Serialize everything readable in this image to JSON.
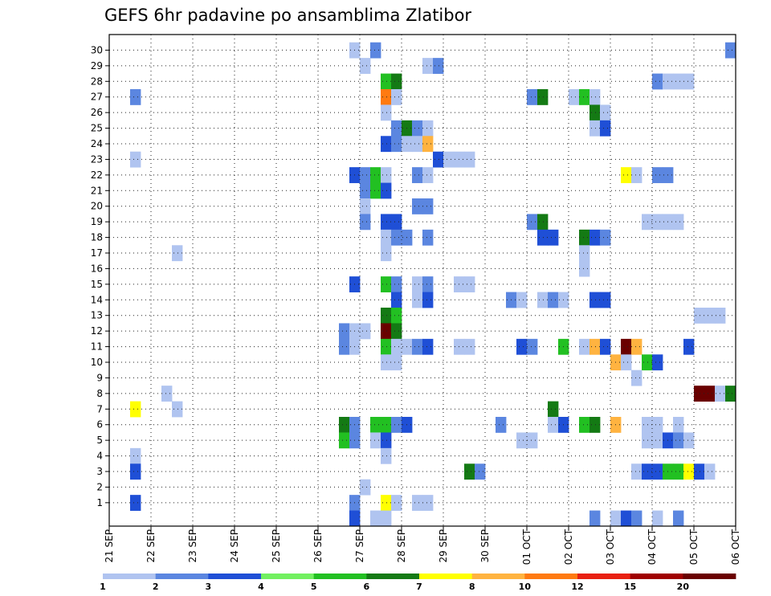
{
  "chart_data": {
    "type": "heatmap",
    "title": "GEFS 6hr padavine po ansamblima Zlatibor",
    "xlabel": "",
    "ylabel": "",
    "grid": true,
    "x_start": "21 SEP",
    "steps_per_day": 4,
    "total_steps": 60,
    "x_tick_labels": [
      "21 SEP",
      "22 SEP",
      "23 SEP",
      "24 SEP",
      "25 SEP",
      "26 SEP",
      "27 SEP",
      "28 SEP",
      "29 SEP",
      "30 SEP",
      "01 OCT",
      "02 OCT",
      "03 OCT",
      "04 OCT",
      "05 OCT",
      "06 OCT"
    ],
    "y_tick_labels": [
      "1",
      "2",
      "3",
      "4",
      "5",
      "6",
      "7",
      "8",
      "9",
      "10",
      "11",
      "12",
      "13",
      "14",
      "15",
      "16",
      "17",
      "18",
      "19",
      "20",
      "21",
      "22",
      "23",
      "24",
      "25",
      "26",
      "27",
      "28",
      "29",
      "30"
    ],
    "ylim": [
      0,
      30
    ],
    "legend": {
      "placement": "bottom",
      "labels": [
        "1",
        "2",
        "3",
        "4",
        "5",
        "6",
        "7",
        "8",
        "10",
        "12",
        "15",
        "20"
      ],
      "colors": [
        "#b0c4f0",
        "#5b86e0",
        "#1f4fd6",
        "#72f060",
        "#22c022",
        "#147a14",
        "#ffff00",
        "#ffb340",
        "#ff7a10",
        "#e82010",
        "#a00000",
        "#6a0000"
      ]
    },
    "cells": [
      [
        23,
        30,
        1
      ],
      [
        25,
        30,
        2
      ],
      [
        59,
        30,
        2
      ],
      [
        24,
        29,
        1
      ],
      [
        30,
        29,
        1
      ],
      [
        31,
        29,
        2
      ],
      [
        26,
        28,
        5
      ],
      [
        27,
        28,
        6
      ],
      [
        52,
        28,
        2
      ],
      [
        53,
        28,
        1
      ],
      [
        54,
        28,
        1
      ],
      [
        55,
        28,
        1
      ],
      [
        2,
        27,
        2
      ],
      [
        26,
        27,
        10
      ],
      [
        27,
        27,
        1
      ],
      [
        40,
        27,
        2
      ],
      [
        41,
        27,
        6
      ],
      [
        44,
        27,
        1
      ],
      [
        45,
        27,
        5
      ],
      [
        46,
        27,
        1
      ],
      [
        26,
        26,
        1
      ],
      [
        46,
        26,
        6
      ],
      [
        47,
        26,
        1
      ],
      [
        27,
        25,
        2
      ],
      [
        28,
        25,
        6
      ],
      [
        29,
        25,
        2
      ],
      [
        30,
        25,
        1
      ],
      [
        46,
        25,
        1
      ],
      [
        47,
        25,
        3
      ],
      [
        26,
        24,
        3
      ],
      [
        27,
        24,
        2
      ],
      [
        28,
        24,
        1
      ],
      [
        29,
        24,
        1
      ],
      [
        30,
        24,
        8
      ],
      [
        2,
        23,
        1
      ],
      [
        31,
        23,
        3
      ],
      [
        32,
        23,
        1
      ],
      [
        33,
        23,
        1
      ],
      [
        34,
        23,
        1
      ],
      [
        23,
        22,
        3
      ],
      [
        24,
        22,
        2
      ],
      [
        25,
        22,
        5
      ],
      [
        26,
        22,
        1
      ],
      [
        29,
        22,
        2
      ],
      [
        30,
        22,
        1
      ],
      [
        49,
        22,
        7
      ],
      [
        50,
        22,
        1
      ],
      [
        52,
        22,
        2
      ],
      [
        53,
        22,
        2
      ],
      [
        24,
        21,
        2
      ],
      [
        25,
        21,
        5
      ],
      [
        26,
        21,
        3
      ],
      [
        24,
        20,
        1
      ],
      [
        29,
        20,
        2
      ],
      [
        30,
        20,
        2
      ],
      [
        24,
        19,
        2
      ],
      [
        26,
        19,
        3
      ],
      [
        27,
        19,
        3
      ],
      [
        40,
        19,
        2
      ],
      [
        41,
        19,
        6
      ],
      [
        51,
        19,
        1
      ],
      [
        52,
        19,
        1
      ],
      [
        53,
        19,
        1
      ],
      [
        54,
        19,
        1
      ],
      [
        26,
        18,
        1
      ],
      [
        27,
        18,
        2
      ],
      [
        28,
        18,
        2
      ],
      [
        30,
        18,
        2
      ],
      [
        41,
        18,
        3
      ],
      [
        42,
        18,
        3
      ],
      [
        45,
        18,
        6
      ],
      [
        46,
        18,
        3
      ],
      [
        47,
        18,
        2
      ],
      [
        26,
        17,
        1
      ],
      [
        6,
        17,
        1
      ],
      [
        45,
        17,
        1
      ],
      [
        45,
        16,
        1
      ],
      [
        23,
        15,
        3
      ],
      [
        26,
        15,
        5
      ],
      [
        27,
        15,
        2
      ],
      [
        29,
        15,
        1
      ],
      [
        30,
        15,
        2
      ],
      [
        33,
        15,
        1
      ],
      [
        34,
        15,
        1
      ],
      [
        27,
        14,
        3
      ],
      [
        29,
        14,
        1
      ],
      [
        30,
        14,
        3
      ],
      [
        38,
        14,
        2
      ],
      [
        39,
        14,
        1
      ],
      [
        41,
        14,
        1
      ],
      [
        42,
        14,
        2
      ],
      [
        43,
        14,
        1
      ],
      [
        46,
        14,
        3
      ],
      [
        47,
        14,
        3
      ],
      [
        26,
        13,
        6
      ],
      [
        27,
        13,
        5
      ],
      [
        56,
        13,
        1
      ],
      [
        57,
        13,
        1
      ],
      [
        58,
        13,
        1
      ],
      [
        22,
        12,
        2
      ],
      [
        23,
        12,
        1
      ],
      [
        24,
        12,
        1
      ],
      [
        26,
        12,
        20
      ],
      [
        27,
        12,
        6
      ],
      [
        22,
        11,
        2
      ],
      [
        23,
        11,
        1
      ],
      [
        26,
        11,
        5
      ],
      [
        27,
        11,
        1
      ],
      [
        28,
        11,
        1
      ],
      [
        29,
        11,
        2
      ],
      [
        30,
        11,
        3
      ],
      [
        33,
        11,
        1
      ],
      [
        34,
        11,
        1
      ],
      [
        39,
        11,
        3
      ],
      [
        40,
        11,
        2
      ],
      [
        43,
        11,
        5
      ],
      [
        45,
        11,
        1
      ],
      [
        46,
        11,
        8
      ],
      [
        47,
        11,
        3
      ],
      [
        49,
        11,
        20
      ],
      [
        50,
        11,
        8
      ],
      [
        55,
        11,
        3
      ],
      [
        26,
        10,
        1
      ],
      [
        27,
        10,
        1
      ],
      [
        48,
        10,
        8
      ],
      [
        49,
        10,
        1
      ],
      [
        51,
        10,
        5
      ],
      [
        52,
        10,
        3
      ],
      [
        50,
        9,
        1
      ],
      [
        5,
        8,
        1
      ],
      [
        56,
        8,
        20
      ],
      [
        57,
        8,
        20
      ],
      [
        58,
        8,
        1
      ],
      [
        59,
        8,
        6
      ],
      [
        2,
        7,
        7
      ],
      [
        6,
        7,
        1
      ],
      [
        42,
        7,
        6
      ],
      [
        22,
        6,
        6
      ],
      [
        23,
        6,
        2
      ],
      [
        25,
        6,
        5
      ],
      [
        26,
        6,
        5
      ],
      [
        27,
        6,
        2
      ],
      [
        28,
        6,
        3
      ],
      [
        37,
        6,
        2
      ],
      [
        42,
        6,
        1
      ],
      [
        43,
        6,
        3
      ],
      [
        45,
        6,
        5
      ],
      [
        46,
        6,
        6
      ],
      [
        48,
        6,
        8
      ],
      [
        51,
        6,
        1
      ],
      [
        52,
        6,
        1
      ],
      [
        54,
        6,
        1
      ],
      [
        22,
        5,
        5
      ],
      [
        23,
        5,
        2
      ],
      [
        25,
        5,
        1
      ],
      [
        26,
        5,
        3
      ],
      [
        39,
        5,
        1
      ],
      [
        40,
        5,
        1
      ],
      [
        51,
        5,
        1
      ],
      [
        52,
        5,
        1
      ],
      [
        53,
        5,
        3
      ],
      [
        54,
        5,
        2
      ],
      [
        55,
        5,
        1
      ],
      [
        2,
        4,
        1
      ],
      [
        26,
        4,
        1
      ],
      [
        2,
        3,
        3
      ],
      [
        34,
        3,
        6
      ],
      [
        35,
        3,
        2
      ],
      [
        50,
        3,
        1
      ],
      [
        51,
        3,
        3
      ],
      [
        52,
        3,
        3
      ],
      [
        53,
        3,
        5
      ],
      [
        54,
        3,
        5
      ],
      [
        55,
        3,
        7
      ],
      [
        56,
        3,
        3
      ],
      [
        57,
        3,
        1
      ],
      [
        24,
        2,
        1
      ],
      [
        2,
        1,
        3
      ],
      [
        23,
        1,
        2
      ],
      [
        26,
        1,
        7
      ],
      [
        27,
        1,
        1
      ],
      [
        29,
        1,
        1
      ],
      [
        30,
        1,
        1
      ],
      [
        25,
        0,
        1
      ],
      [
        26,
        0,
        1
      ],
      [
        23,
        0,
        3
      ],
      [
        46,
        0,
        2
      ],
      [
        48,
        0,
        1
      ],
      [
        49,
        0,
        3
      ],
      [
        50,
        0,
        2
      ],
      [
        52,
        0,
        1
      ],
      [
        54,
        0,
        2
      ]
    ]
  }
}
